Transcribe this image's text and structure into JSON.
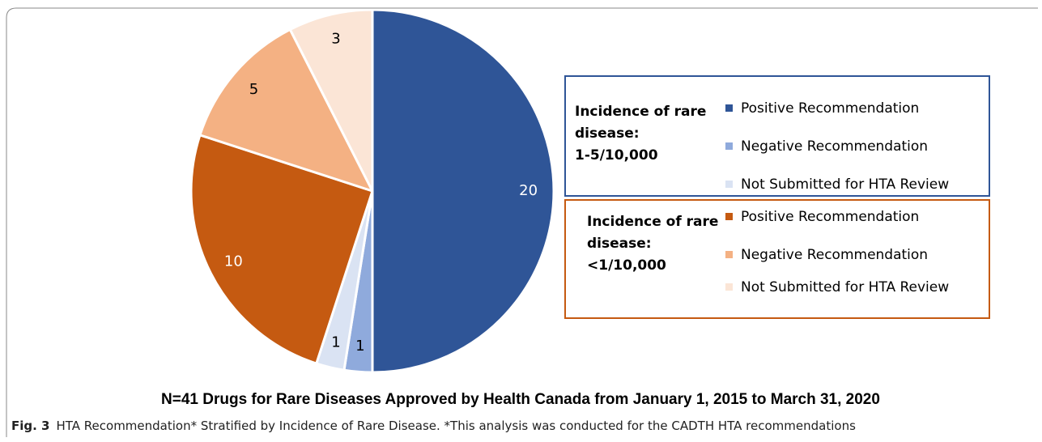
{
  "chart_data": {
    "type": "pie",
    "title": "N=41 Drugs for Rare Diseases Approved by Health Canada from January 1, 2015 to March 31, 2020",
    "legend_groups": [
      {
        "title": [
          "Incidence of rare",
          "disease:",
          "1-5/10,000"
        ],
        "border_color": "#2f5597",
        "categories": [
          "Positive Recommendation",
          "Negative Recommendation",
          "Not Submitted for HTA Review"
        ],
        "colors": [
          "#2f5597",
          "#8faadc",
          "#dae3f3"
        ],
        "values": [
          20,
          1,
          1
        ]
      },
      {
        "title": [
          "Incidence of rare",
          "disease:",
          "<1/10,000"
        ],
        "border_color": "#c55a11",
        "categories": [
          "Positive Recommendation",
          "Negative Recommendation",
          "Not Submitted for HTA Review"
        ],
        "colors": [
          "#c55a11",
          "#f4b183",
          "#fbe5d6"
        ],
        "values": [
          10,
          5,
          3
        ]
      }
    ]
  },
  "caption": {
    "label": "Fig. 3",
    "text": "HTA Recommendation* Stratified by Incidence of Rare Disease. *This analysis was conducted for the CADTH HTA recommendations"
  }
}
